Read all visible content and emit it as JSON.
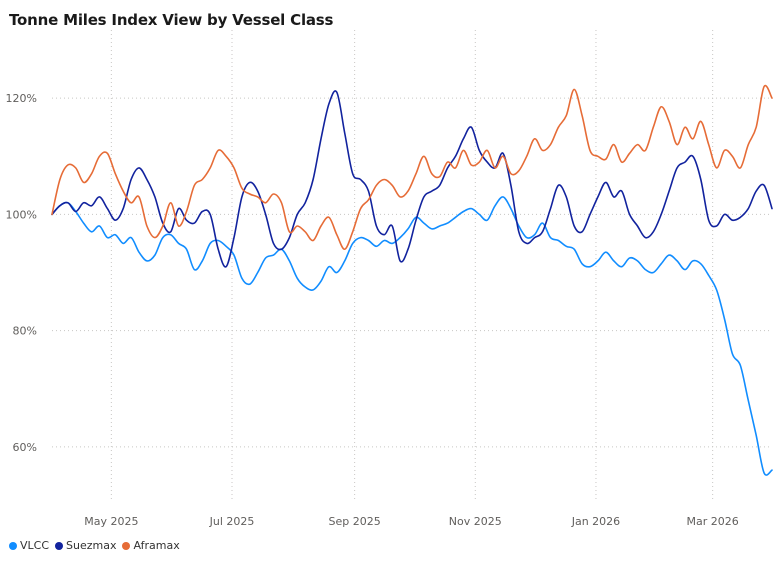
{
  "chart_data": {
    "type": "line",
    "title": "Tonne Miles Index View by Vessel Class",
    "xlabel": "",
    "ylabel": "",
    "x_range": [
      "2025-04-01",
      "2026-03-31"
    ],
    "ylim": [
      50,
      130
    ],
    "y_ticks": [
      60,
      80,
      100,
      120
    ],
    "y_tick_labels": [
      "60%",
      "80%",
      "100%",
      "120%"
    ],
    "x_ticks": [
      {
        "date": "2025-05-01",
        "label": "May 2025"
      },
      {
        "date": "2025-07-01",
        "label": "Jul 2025"
      },
      {
        "date": "2025-09-01",
        "label": "Sep 2025"
      },
      {
        "date": "2025-11-01",
        "label": "Nov 2025"
      },
      {
        "date": "2026-01-01",
        "label": "Jan 2026"
      },
      {
        "date": "2026-03-01",
        "label": "Mar 2026"
      }
    ],
    "grid": true,
    "legend_position": "bottom-left",
    "series": [
      {
        "name": "VLCC",
        "color": "#118DFF",
        "points": [
          [
            "2025-04-01",
            100
          ],
          [
            "2025-04-05",
            101.5
          ],
          [
            "2025-04-09",
            102
          ],
          [
            "2025-04-13",
            100.5
          ],
          [
            "2025-04-17",
            98.5
          ],
          [
            "2025-04-21",
            97
          ],
          [
            "2025-04-25",
            98
          ],
          [
            "2025-04-29",
            96
          ],
          [
            "2025-05-03",
            96.5
          ],
          [
            "2025-05-07",
            95
          ],
          [
            "2025-05-11",
            96
          ],
          [
            "2025-05-15",
            93.5
          ],
          [
            "2025-05-19",
            92
          ],
          [
            "2025-05-23",
            93
          ],
          [
            "2025-05-27",
            96
          ],
          [
            "2025-05-31",
            96.5
          ],
          [
            "2025-06-04",
            95
          ],
          [
            "2025-06-08",
            94
          ],
          [
            "2025-06-12",
            90.5
          ],
          [
            "2025-06-16",
            92
          ],
          [
            "2025-06-20",
            95
          ],
          [
            "2025-06-24",
            95.5
          ],
          [
            "2025-06-28",
            94.5
          ],
          [
            "2025-07-02",
            93
          ],
          [
            "2025-07-06",
            89
          ],
          [
            "2025-07-10",
            88
          ],
          [
            "2025-07-14",
            90
          ],
          [
            "2025-07-18",
            92.5
          ],
          [
            "2025-07-22",
            93
          ],
          [
            "2025-07-26",
            94
          ],
          [
            "2025-07-30",
            92
          ],
          [
            "2025-08-03",
            89
          ],
          [
            "2025-08-07",
            87.5
          ],
          [
            "2025-08-11",
            87
          ],
          [
            "2025-08-15",
            88.5
          ],
          [
            "2025-08-19",
            91
          ],
          [
            "2025-08-23",
            90
          ],
          [
            "2025-08-27",
            92
          ],
          [
            "2025-08-31",
            95
          ],
          [
            "2025-09-04",
            96
          ],
          [
            "2025-09-08",
            95.5
          ],
          [
            "2025-09-12",
            94.5
          ],
          [
            "2025-09-16",
            95.5
          ],
          [
            "2025-09-20",
            95
          ],
          [
            "2025-09-24",
            96
          ],
          [
            "2025-09-28",
            97.5
          ],
          [
            "2025-10-02",
            99.5
          ],
          [
            "2025-10-06",
            98.5
          ],
          [
            "2025-10-10",
            97.5
          ],
          [
            "2025-10-14",
            98
          ],
          [
            "2025-10-18",
            98.5
          ],
          [
            "2025-10-22",
            99.5
          ],
          [
            "2025-10-26",
            100.5
          ],
          [
            "2025-10-30",
            101
          ],
          [
            "2025-11-03",
            100
          ],
          [
            "2025-11-07",
            99
          ],
          [
            "2025-11-11",
            101.5
          ],
          [
            "2025-11-15",
            103
          ],
          [
            "2025-11-19",
            101
          ],
          [
            "2025-11-23",
            98
          ],
          [
            "2025-11-27",
            96
          ],
          [
            "2025-12-01",
            96.5
          ],
          [
            "2025-12-05",
            98.5
          ],
          [
            "2025-12-09",
            96
          ],
          [
            "2025-12-13",
            95.5
          ],
          [
            "2025-12-17",
            94.5
          ],
          [
            "2025-12-21",
            94
          ],
          [
            "2025-12-25",
            91.5
          ],
          [
            "2025-12-29",
            91
          ],
          [
            "2026-01-02",
            92
          ],
          [
            "2026-01-06",
            93.5
          ],
          [
            "2026-01-10",
            92
          ],
          [
            "2026-01-14",
            91
          ],
          [
            "2026-01-18",
            92.5
          ],
          [
            "2026-01-22",
            92
          ],
          [
            "2026-01-26",
            90.5
          ],
          [
            "2026-01-30",
            90
          ],
          [
            "2026-02-03",
            91.5
          ],
          [
            "2026-02-07",
            93
          ],
          [
            "2026-02-11",
            92
          ],
          [
            "2026-02-15",
            90.5
          ],
          [
            "2026-02-19",
            92
          ],
          [
            "2026-02-23",
            91.5
          ],
          [
            "2026-02-27",
            89.5
          ],
          [
            "2026-03-03",
            87
          ],
          [
            "2026-03-07",
            82
          ],
          [
            "2026-03-11",
            76
          ],
          [
            "2026-03-15",
            74
          ],
          [
            "2026-03-19",
            68
          ],
          [
            "2026-03-23",
            62
          ],
          [
            "2026-03-27",
            55.5
          ],
          [
            "2026-03-31",
            56
          ]
        ]
      },
      {
        "name": "Suezmax",
        "color": "#12239E",
        "points": [
          [
            "2025-04-01",
            100
          ],
          [
            "2025-04-05",
            101.5
          ],
          [
            "2025-04-09",
            102
          ],
          [
            "2025-04-13",
            100.5
          ],
          [
            "2025-04-17",
            102
          ],
          [
            "2025-04-21",
            101.5
          ],
          [
            "2025-04-25",
            103
          ],
          [
            "2025-04-29",
            101
          ],
          [
            "2025-05-03",
            99
          ],
          [
            "2025-05-07",
            101
          ],
          [
            "2025-05-11",
            106
          ],
          [
            "2025-05-15",
            108
          ],
          [
            "2025-05-19",
            106
          ],
          [
            "2025-05-23",
            103
          ],
          [
            "2025-05-27",
            98.5
          ],
          [
            "2025-05-31",
            97
          ],
          [
            "2025-06-04",
            101
          ],
          [
            "2025-06-08",
            99
          ],
          [
            "2025-06-12",
            98.5
          ],
          [
            "2025-06-16",
            100.5
          ],
          [
            "2025-06-20",
            100
          ],
          [
            "2025-06-24",
            94
          ],
          [
            "2025-06-28",
            91
          ],
          [
            "2025-07-02",
            96
          ],
          [
            "2025-07-06",
            103
          ],
          [
            "2025-07-10",
            105.5
          ],
          [
            "2025-07-14",
            104
          ],
          [
            "2025-07-18",
            100
          ],
          [
            "2025-07-22",
            95
          ],
          [
            "2025-07-26",
            94
          ],
          [
            "2025-07-30",
            96
          ],
          [
            "2025-08-03",
            100
          ],
          [
            "2025-08-07",
            102
          ],
          [
            "2025-08-11",
            106
          ],
          [
            "2025-08-15",
            113
          ],
          [
            "2025-08-19",
            119
          ],
          [
            "2025-08-23",
            121
          ],
          [
            "2025-08-27",
            114
          ],
          [
            "2025-08-31",
            107
          ],
          [
            "2025-09-04",
            106
          ],
          [
            "2025-09-08",
            104
          ],
          [
            "2025-09-12",
            98
          ],
          [
            "2025-09-16",
            96.5
          ],
          [
            "2025-09-20",
            98
          ],
          [
            "2025-09-24",
            92
          ],
          [
            "2025-09-28",
            94
          ],
          [
            "2025-10-02",
            99
          ],
          [
            "2025-10-06",
            103
          ],
          [
            "2025-10-10",
            104
          ],
          [
            "2025-10-14",
            105
          ],
          [
            "2025-10-18",
            108
          ],
          [
            "2025-10-22",
            110
          ],
          [
            "2025-10-26",
            113
          ],
          [
            "2025-10-30",
            115
          ],
          [
            "2025-11-03",
            111
          ],
          [
            "2025-11-07",
            109
          ],
          [
            "2025-11-11",
            108
          ],
          [
            "2025-11-15",
            110.5
          ],
          [
            "2025-11-19",
            105
          ],
          [
            "2025-11-23",
            97
          ],
          [
            "2025-11-27",
            95
          ],
          [
            "2025-12-01",
            96
          ],
          [
            "2025-12-05",
            97
          ],
          [
            "2025-12-09",
            101
          ],
          [
            "2025-12-13",
            105
          ],
          [
            "2025-12-17",
            103
          ],
          [
            "2025-12-21",
            98
          ],
          [
            "2025-12-25",
            97
          ],
          [
            "2025-12-29",
            100
          ],
          [
            "2026-01-02",
            103
          ],
          [
            "2026-01-06",
            105.5
          ],
          [
            "2026-01-10",
            103
          ],
          [
            "2026-01-14",
            104
          ],
          [
            "2026-01-18",
            100
          ],
          [
            "2026-01-22",
            98
          ],
          [
            "2026-01-26",
            96
          ],
          [
            "2026-01-30",
            97
          ],
          [
            "2026-02-03",
            100
          ],
          [
            "2026-02-07",
            104
          ],
          [
            "2026-02-11",
            108
          ],
          [
            "2026-02-15",
            109
          ],
          [
            "2026-02-19",
            110
          ],
          [
            "2026-02-23",
            106
          ],
          [
            "2026-02-27",
            99
          ],
          [
            "2026-03-03",
            98
          ],
          [
            "2026-03-07",
            100
          ],
          [
            "2026-03-11",
            99
          ],
          [
            "2026-03-15",
            99.5
          ],
          [
            "2026-03-19",
            101
          ],
          [
            "2026-03-23",
            104
          ],
          [
            "2026-03-27",
            105
          ],
          [
            "2026-03-31",
            101
          ]
        ]
      },
      {
        "name": "Aframax",
        "color": "#E66C37",
        "points": [
          [
            "2025-04-01",
            100
          ],
          [
            "2025-04-05",
            106
          ],
          [
            "2025-04-09",
            108.5
          ],
          [
            "2025-04-13",
            108
          ],
          [
            "2025-04-17",
            105.5
          ],
          [
            "2025-04-21",
            107
          ],
          [
            "2025-04-25",
            110
          ],
          [
            "2025-04-29",
            110.5
          ],
          [
            "2025-05-03",
            107
          ],
          [
            "2025-05-07",
            104
          ],
          [
            "2025-05-11",
            102
          ],
          [
            "2025-05-15",
            103
          ],
          [
            "2025-05-19",
            98
          ],
          [
            "2025-05-23",
            96
          ],
          [
            "2025-05-27",
            98
          ],
          [
            "2025-05-31",
            102
          ],
          [
            "2025-06-04",
            98
          ],
          [
            "2025-06-08",
            100.5
          ],
          [
            "2025-06-12",
            105
          ],
          [
            "2025-06-16",
            106
          ],
          [
            "2025-06-20",
            108
          ],
          [
            "2025-06-24",
            111
          ],
          [
            "2025-06-28",
            110
          ],
          [
            "2025-07-02",
            108
          ],
          [
            "2025-07-06",
            104.5
          ],
          [
            "2025-07-10",
            103.5
          ],
          [
            "2025-07-14",
            103
          ],
          [
            "2025-07-18",
            102
          ],
          [
            "2025-07-22",
            103.5
          ],
          [
            "2025-07-26",
            102
          ],
          [
            "2025-07-30",
            97
          ],
          [
            "2025-08-03",
            98
          ],
          [
            "2025-08-07",
            97
          ],
          [
            "2025-08-11",
            95.5
          ],
          [
            "2025-08-15",
            98
          ],
          [
            "2025-08-19",
            99.5
          ],
          [
            "2025-08-23",
            96.5
          ],
          [
            "2025-08-27",
            94
          ],
          [
            "2025-08-31",
            97
          ],
          [
            "2025-09-04",
            101
          ],
          [
            "2025-09-08",
            102.5
          ],
          [
            "2025-09-12",
            105
          ],
          [
            "2025-09-16",
            106
          ],
          [
            "2025-09-20",
            105
          ],
          [
            "2025-09-24",
            103
          ],
          [
            "2025-09-28",
            104
          ],
          [
            "2025-10-02",
            107
          ],
          [
            "2025-10-06",
            110
          ],
          [
            "2025-10-10",
            107
          ],
          [
            "2025-10-14",
            106.5
          ],
          [
            "2025-10-18",
            109
          ],
          [
            "2025-10-22",
            108
          ],
          [
            "2025-10-26",
            111
          ],
          [
            "2025-10-30",
            108.5
          ],
          [
            "2025-11-03",
            109
          ],
          [
            "2025-11-07",
            111
          ],
          [
            "2025-11-11",
            108
          ],
          [
            "2025-11-15",
            110
          ],
          [
            "2025-11-19",
            107
          ],
          [
            "2025-11-23",
            107.5
          ],
          [
            "2025-11-27",
            110
          ],
          [
            "2025-12-01",
            113
          ],
          [
            "2025-12-05",
            111
          ],
          [
            "2025-12-09",
            112
          ],
          [
            "2025-12-13",
            115
          ],
          [
            "2025-12-17",
            117
          ],
          [
            "2025-12-21",
            121.5
          ],
          [
            "2025-12-25",
            117
          ],
          [
            "2025-12-29",
            111
          ],
          [
            "2026-01-02",
            110
          ],
          [
            "2026-01-06",
            109.5
          ],
          [
            "2026-01-10",
            112
          ],
          [
            "2026-01-14",
            109
          ],
          [
            "2026-01-18",
            110.5
          ],
          [
            "2026-01-22",
            112
          ],
          [
            "2026-01-26",
            111
          ],
          [
            "2026-01-30",
            115
          ],
          [
            "2026-02-03",
            118.5
          ],
          [
            "2026-02-07",
            116
          ],
          [
            "2026-02-11",
            112
          ],
          [
            "2026-02-15",
            115
          ],
          [
            "2026-02-19",
            113
          ],
          [
            "2026-02-23",
            116
          ],
          [
            "2026-02-27",
            112
          ],
          [
            "2026-03-03",
            108
          ],
          [
            "2026-03-07",
            111
          ],
          [
            "2026-03-11",
            110
          ],
          [
            "2026-03-15",
            108
          ],
          [
            "2026-03-19",
            112
          ],
          [
            "2026-03-23",
            115
          ],
          [
            "2026-03-27",
            122
          ],
          [
            "2026-03-31",
            120
          ]
        ]
      }
    ]
  }
}
